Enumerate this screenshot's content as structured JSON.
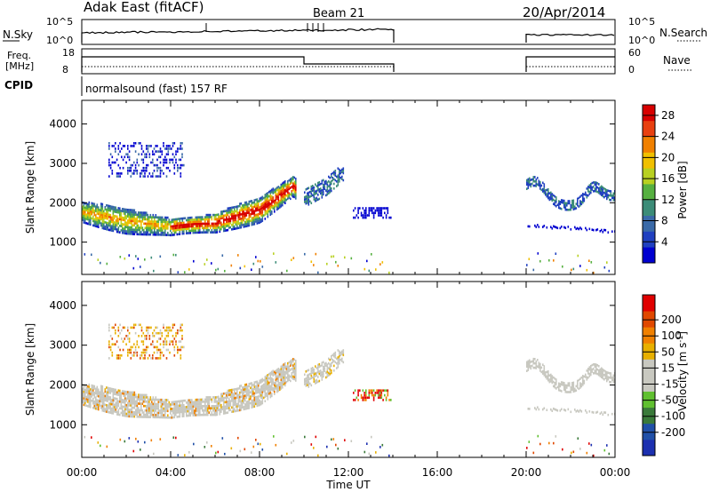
{
  "header": {
    "radar": "Adak East (fitACF)",
    "beam": "Beam 21",
    "date": "20/Apr/2014",
    "cpid_label": "CPID",
    "cpid_value": "normalsound (fast) 157 RF"
  },
  "param_panels": {
    "nsky": {
      "left_label": "N.Sky",
      "right_label": "N.Search",
      "left_ticks": [
        "10^5",
        "10^0"
      ],
      "right_ticks": [
        "10^5",
        "10^0"
      ]
    },
    "freq": {
      "left_label_1": "Freq.",
      "left_label_2": "[MHz]",
      "right_label": "Nave",
      "left_ticks": [
        "18",
        "8"
      ],
      "right_ticks": [
        "60",
        "0"
      ]
    }
  },
  "time_axis": {
    "label": "Time UT",
    "ticks": [
      "00:00",
      "04:00",
      "08:00",
      "12:00",
      "16:00",
      "20:00",
      "00:00"
    ]
  },
  "chart_data": [
    {
      "type": "heatmap",
      "ylabel": "Slant Range [km]",
      "yticks": [
        "1000",
        "2000",
        "3000",
        "4000"
      ],
      "ylim": [
        180,
        4600
      ],
      "xlim_hours": [
        0,
        24
      ],
      "colorbar": {
        "label": "Power [dB]",
        "ticks": [
          "4",
          "8",
          "12",
          "16",
          "20",
          "24",
          "28"
        ],
        "range": [
          0,
          30
        ]
      },
      "data_gaps_hours": [
        [
          14,
          20
        ]
      ],
      "main_echo_band_km": [
        {
          "t": 0,
          "r": 1800
        },
        {
          "t": 2,
          "r": 1560
        },
        {
          "t": 4,
          "r": 1420
        },
        {
          "t": 6,
          "r": 1520
        },
        {
          "t": 8,
          "r": 1850
        },
        {
          "t": 9.5,
          "r": 2450
        },
        {
          "t": 10,
          "r": 2150
        },
        {
          "t": 11,
          "r": 2450
        },
        {
          "t": 11.8,
          "r": 2850
        }
      ]
    },
    {
      "type": "heatmap",
      "ylabel": "Slant Range [km]",
      "yticks": [
        "1000",
        "2000",
        "3000",
        "4000"
      ],
      "ylim": [
        180,
        4600
      ],
      "xlim_hours": [
        0,
        24
      ],
      "colorbar": {
        "label": "Velocity [m s^-1]",
        "ticks": [
          "200",
          "100",
          "50",
          "15",
          "-15",
          "-50",
          "-100",
          "-200"
        ]
      },
      "data_gaps_hours": [
        [
          14,
          20
        ]
      ]
    }
  ],
  "colors": {
    "power_scale": [
      "#0000d0",
      "#2040c0",
      "#3a6aa8",
      "#3c8c78",
      "#56b040",
      "#b8d020",
      "#f0c000",
      "#f08000",
      "#e84010",
      "#d80000"
    ],
    "velocity_scale": [
      "#1c30b0",
      "#2050a8",
      "#3a7a3a",
      "#60c030",
      "#c8c8c0",
      "#c8c8c0",
      "#e8b000",
      "#f08000",
      "#e04800",
      "#e00000"
    ]
  }
}
